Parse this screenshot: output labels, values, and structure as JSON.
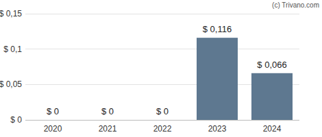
{
  "chart_data": {
    "type": "bar",
    "categories": [
      "2020",
      "2021",
      "2022",
      "2023",
      "2024"
    ],
    "values": [
      0,
      0,
      0,
      0.116,
      0.066
    ],
    "value_labels": [
      "$ 0",
      "$ 0",
      "$ 0",
      "$ 0,116",
      "$ 0,066"
    ],
    "data_labels": true,
    "color": "#5e7890",
    "ylim": [
      0,
      0.15
    ],
    "yticks": [
      {
        "value": 0,
        "label": "$ 0"
      },
      {
        "value": 0.05,
        "label": "$ 0,05"
      },
      {
        "value": 0.1,
        "label": "$ 0,1"
      },
      {
        "value": 0.15,
        "label": "$ 0,15"
      }
    ],
    "grid": true,
    "annotations": [
      "(c) Trivano.com"
    ]
  }
}
